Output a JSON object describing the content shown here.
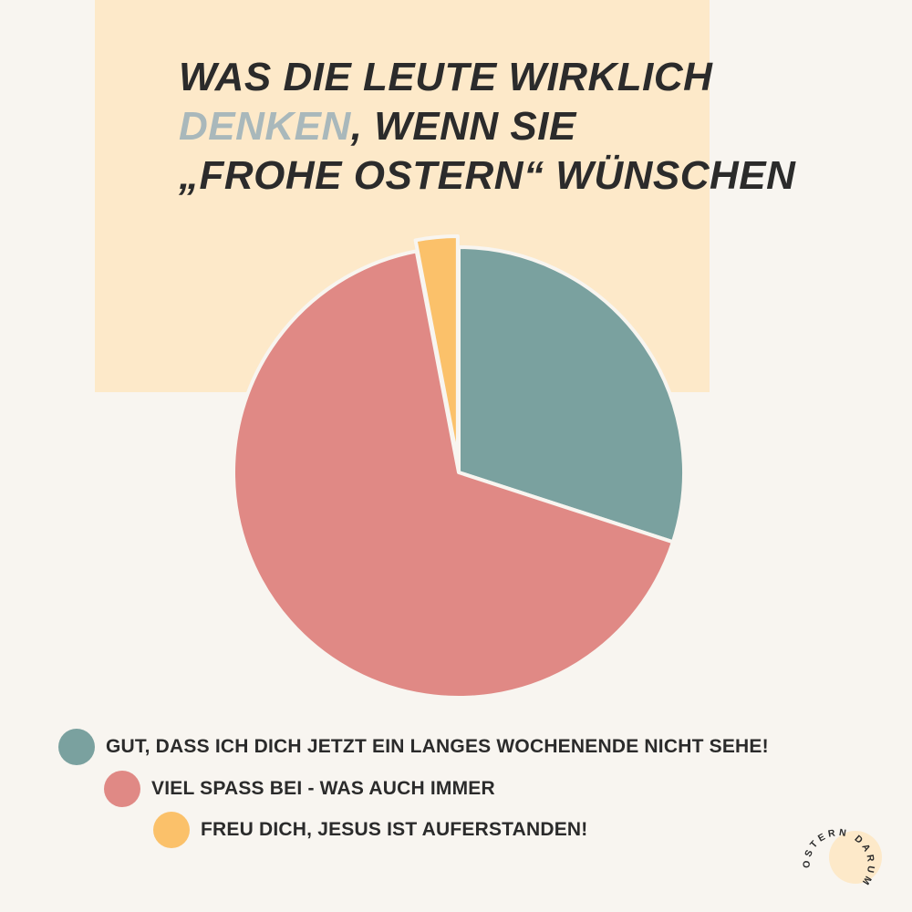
{
  "title": {
    "line1": "WAS DIE LEUTE WIRKLICH",
    "line2_accent": "DENKEN",
    "line2_rest": ", WENN SIE",
    "line3": "„FROHE OSTERN“ WÜNSCHEN"
  },
  "colors": {
    "background": "#f8f5f0",
    "title_panel": "#fde9c9",
    "text": "#2b2b2b",
    "accent": "#a9b8bb",
    "teal": "#7aa19f",
    "salmon": "#e08985",
    "yellow": "#fbc16a"
  },
  "chart_data": {
    "type": "pie",
    "slices": [
      {
        "label": "GUT, DASS ICH DICH JETZT EIN LANGES WOCHENENDE NICHT SEHE!",
        "value": 30,
        "color": "#7aa19f"
      },
      {
        "label": "VIEL SPASS BEI - WAS AUCH IMMER",
        "value": 67,
        "color": "#e08985"
      },
      {
        "label": "FREU DICH, JESUS IST AUFERSTANDEN!",
        "value": 3,
        "color": "#fbc16a"
      }
    ],
    "legend_position": "bottom"
  },
  "badge": {
    "text": "OSTERN DARUM"
  }
}
